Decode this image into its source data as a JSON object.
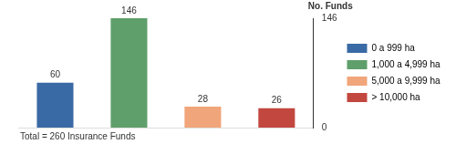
{
  "chart_data": {
    "type": "bar",
    "ylabel": "No. Funds",
    "annotation": "Total = 260 Insurance Funds",
    "categories": [
      "0 a 999 ha",
      "1,000 a 4,999 ha",
      "5,000 a 9,999 ha",
      "> 10,000 ha"
    ],
    "values": [
      60,
      146,
      28,
      26
    ],
    "colors": [
      "#3a6aa5",
      "#5f9f6b",
      "#f1a57a",
      "#c2473f"
    ],
    "ylim": [
      0,
      146
    ],
    "yticks": [
      0,
      146
    ],
    "grid": false,
    "legend": "right",
    "data_labels": true,
    "tick_labels": "y"
  }
}
